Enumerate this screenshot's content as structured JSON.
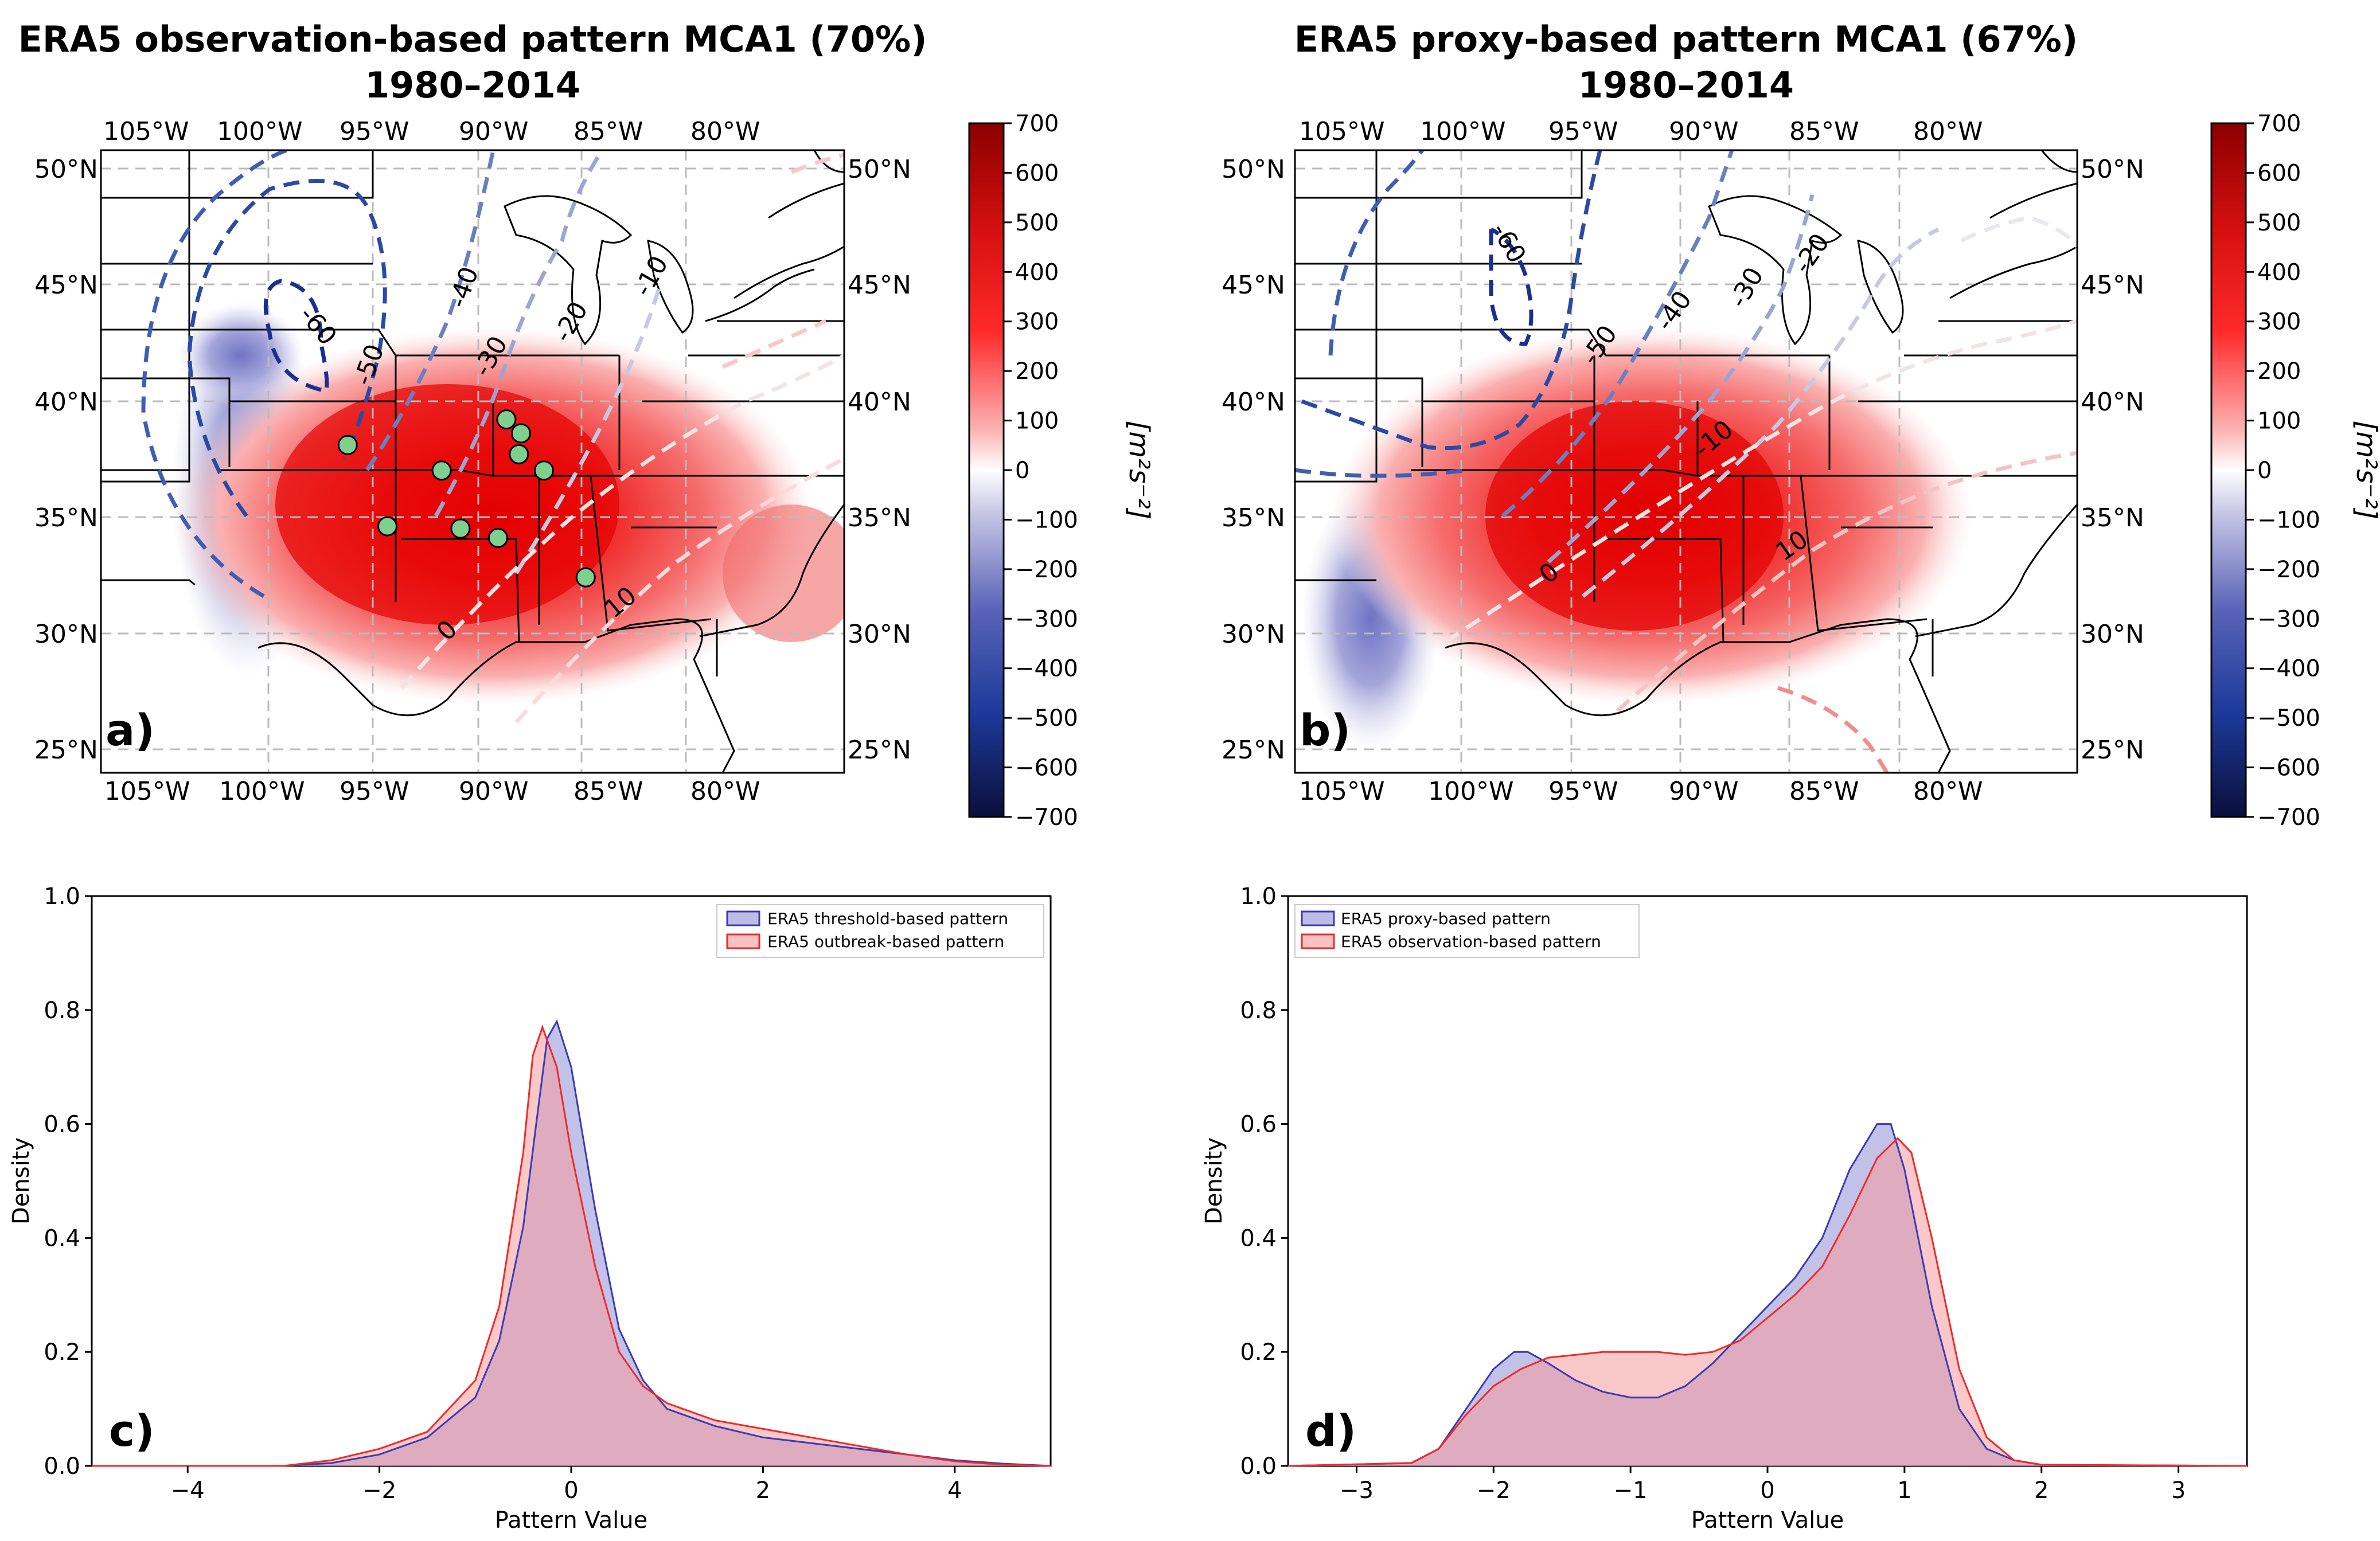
{
  "chart_data": [
    {
      "id": "a",
      "type": "contour_map",
      "title_line1": "ERA5 observation-based pattern MCA1 (70%)",
      "title_line2": "1980–2014",
      "panel_label": "a)",
      "lon_ticks": [
        "105°W",
        "100°W",
        "95°W",
        "90°W",
        "85°W",
        "80°W"
      ],
      "lat_ticks": [
        "50°N",
        "45°N",
        "40°N",
        "35°N",
        "30°N",
        "25°N"
      ],
      "contour_labels": [
        "-60",
        "-50",
        "-40",
        "-30",
        "-20",
        "-10",
        "0",
        "10"
      ],
      "markers": [
        {
          "lon": -96.2,
          "lat": 38.1
        },
        {
          "lon": -91.7,
          "lat": 37.0
        },
        {
          "lon": -94.3,
          "lat": 34.6
        },
        {
          "lon": -90.8,
          "lat": 34.5
        },
        {
          "lon": -89.0,
          "lat": 34.1
        },
        {
          "lon": -88.6,
          "lat": 39.2
        },
        {
          "lon": -87.9,
          "lat": 38.6
        },
        {
          "lon": -88.0,
          "lat": 37.7
        },
        {
          "lon": -86.8,
          "lat": 37.0
        },
        {
          "lon": -84.8,
          "lat": 32.4
        }
      ]
    },
    {
      "id": "b",
      "type": "contour_map",
      "title_line1": "ERA5 proxy-based pattern MCA1 (67%)",
      "title_line2": "1980–2014",
      "panel_label": "b)",
      "lon_ticks": [
        "105°W",
        "100°W",
        "95°W",
        "90°W",
        "85°W",
        "80°W"
      ],
      "lat_ticks": [
        "50°N",
        "45°N",
        "40°N",
        "35°N",
        "30°N",
        "25°N"
      ],
      "contour_labels": [
        "-60",
        "-50",
        "-40",
        "-30",
        "-20",
        "-10",
        "0",
        "10"
      ]
    },
    {
      "id": "colorbar",
      "type": "colorbar",
      "ticks": [
        "700",
        "600",
        "500",
        "400",
        "300",
        "200",
        "100",
        "0",
        "−100",
        "−200",
        "−300",
        "−400",
        "−500",
        "−600",
        "−700"
      ],
      "unit": "[m²s⁻²]",
      "range": [
        -700,
        700
      ]
    },
    {
      "id": "c",
      "type": "area",
      "panel_label": "c)",
      "xlabel": "Pattern Value",
      "ylabel": "Density",
      "xlim": [
        -5,
        5
      ],
      "ylim": [
        0,
        1.0
      ],
      "xticks": [
        "−4",
        "−2",
        "0",
        "2",
        "4"
      ],
      "yticks": [
        "0.0",
        "0.2",
        "0.4",
        "0.6",
        "0.8",
        "1.0"
      ],
      "legend_position": "top-right",
      "series": [
        {
          "name": "ERA5 threshold-based pattern",
          "color": "#3b3bb3",
          "fill": "#8f8fd6",
          "x": [
            -5,
            -3,
            -2.5,
            -2,
            -1.5,
            -1,
            -0.75,
            -0.5,
            -0.35,
            -0.25,
            -0.15,
            0,
            0.25,
            0.5,
            0.75,
            1,
            1.5,
            2,
            2.5,
            3,
            3.5,
            4,
            4.5,
            5
          ],
          "y": [
            0,
            0,
            0.005,
            0.02,
            0.05,
            0.12,
            0.22,
            0.42,
            0.62,
            0.75,
            0.78,
            0.7,
            0.45,
            0.24,
            0.15,
            0.1,
            0.07,
            0.05,
            0.04,
            0.03,
            0.02,
            0.01,
            0.004,
            0
          ]
        },
        {
          "name": "ERA5 outbreak-based pattern",
          "color": "#ee2a2a",
          "fill": "#f59a9a",
          "x": [
            -5,
            -3,
            -2.5,
            -2,
            -1.5,
            -1,
            -0.75,
            -0.5,
            -0.4,
            -0.3,
            -0.15,
            0,
            0.25,
            0.5,
            0.75,
            1,
            1.5,
            2,
            2.5,
            3,
            3.5,
            4,
            4.5,
            5
          ],
          "y": [
            0,
            0,
            0.01,
            0.03,
            0.06,
            0.15,
            0.28,
            0.55,
            0.72,
            0.77,
            0.7,
            0.55,
            0.35,
            0.2,
            0.14,
            0.11,
            0.08,
            0.065,
            0.05,
            0.035,
            0.02,
            0.008,
            0.002,
            0
          ]
        }
      ]
    },
    {
      "id": "d",
      "type": "area",
      "panel_label": "d)",
      "xlabel": "Pattern Value",
      "ylabel": "Density",
      "xlim": [
        -3.5,
        3.5
      ],
      "ylim": [
        0,
        1.0
      ],
      "xticks": [
        "−3",
        "−2",
        "−1",
        "0",
        "1",
        "2",
        "3"
      ],
      "yticks": [
        "0.0",
        "0.2",
        "0.4",
        "0.6",
        "0.8",
        "1.0"
      ],
      "legend_position": "top-left",
      "series": [
        {
          "name": "ERA5 proxy-based pattern",
          "color": "#3b3bb3",
          "fill": "#8f8fd6",
          "x": [
            -3.5,
            -2.6,
            -2.4,
            -2.2,
            -2.0,
            -1.85,
            -1.75,
            -1.6,
            -1.4,
            -1.2,
            -1.0,
            -0.8,
            -0.6,
            -0.4,
            -0.2,
            0,
            0.2,
            0.4,
            0.6,
            0.8,
            0.9,
            1.0,
            1.2,
            1.4,
            1.6,
            1.8,
            2.0,
            3.5
          ],
          "y": [
            0,
            0.005,
            0.03,
            0.1,
            0.17,
            0.2,
            0.2,
            0.18,
            0.15,
            0.13,
            0.12,
            0.12,
            0.14,
            0.18,
            0.23,
            0.28,
            0.33,
            0.4,
            0.52,
            0.6,
            0.6,
            0.52,
            0.28,
            0.1,
            0.03,
            0.01,
            0.002,
            0
          ]
        },
        {
          "name": "ERA5 observation-based pattern",
          "color": "#ee2a2a",
          "fill": "#f59a9a",
          "x": [
            -3.5,
            -2.6,
            -2.4,
            -2.2,
            -2.0,
            -1.8,
            -1.6,
            -1.4,
            -1.2,
            -1.0,
            -0.8,
            -0.6,
            -0.4,
            -0.2,
            0,
            0.2,
            0.4,
            0.6,
            0.8,
            0.95,
            1.05,
            1.2,
            1.4,
            1.6,
            1.8,
            2.0,
            3.5
          ],
          "y": [
            0,
            0.005,
            0.03,
            0.09,
            0.14,
            0.17,
            0.19,
            0.195,
            0.2,
            0.2,
            0.2,
            0.195,
            0.2,
            0.22,
            0.26,
            0.3,
            0.35,
            0.44,
            0.54,
            0.575,
            0.55,
            0.4,
            0.17,
            0.05,
            0.01,
            0.002,
            0
          ]
        }
      ]
    }
  ]
}
